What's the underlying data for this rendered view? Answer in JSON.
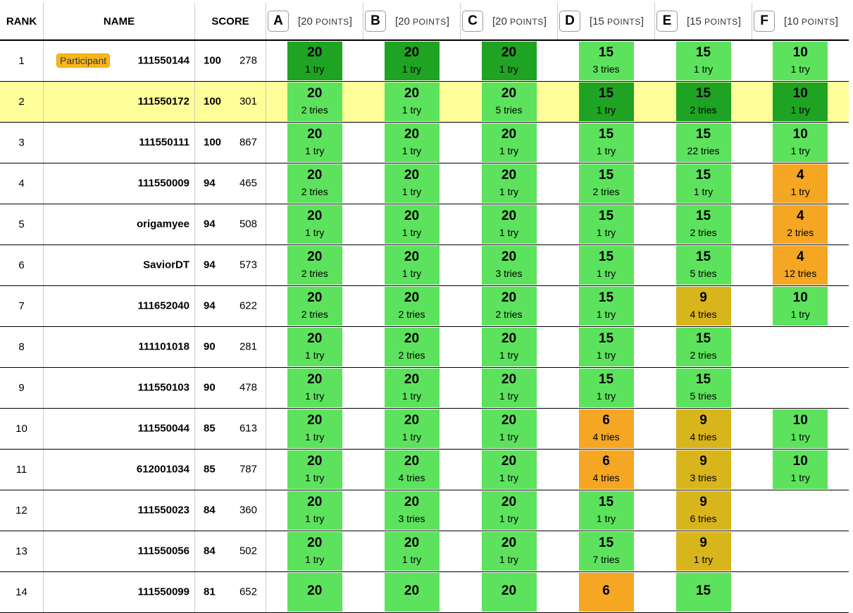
{
  "headers": {
    "rank": "RANK",
    "name": "NAME",
    "score": "SCORE"
  },
  "problems": [
    {
      "letter": "A",
      "points_label": "[20 ",
      "points_word": "POINTS",
      "close": "]"
    },
    {
      "letter": "B",
      "points_label": "[20 ",
      "points_word": "POINTS",
      "close": "]"
    },
    {
      "letter": "C",
      "points_label": "[20 ",
      "points_word": "POINTS",
      "close": "]"
    },
    {
      "letter": "D",
      "points_label": "[15 ",
      "points_word": "POINTS",
      "close": "]"
    },
    {
      "letter": "E",
      "points_label": "[15 ",
      "points_word": "POINTS",
      "close": "]"
    },
    {
      "letter": "F",
      "points_label": "[10 ",
      "points_word": "POINTS",
      "close": "]"
    }
  ],
  "colors": {
    "first_solve": "#1fa323",
    "full": "#5de25d",
    "partial_orange": "#f5a623",
    "partial_yellow": "#d9b51c",
    "highlight_row": "#ffff99"
  },
  "rows": [
    {
      "rank": "1",
      "badge": "Participant",
      "name": "111550144",
      "points": "100",
      "penalty": "278",
      "highlight": false,
      "cells": [
        {
          "p": "20",
          "t": "1 try",
          "c": "first"
        },
        {
          "p": "20",
          "t": "1 try",
          "c": "first"
        },
        {
          "p": "20",
          "t": "1 try",
          "c": "first"
        },
        {
          "p": "15",
          "t": "3 tries",
          "c": "full"
        },
        {
          "p": "15",
          "t": "1 try",
          "c": "full"
        },
        {
          "p": "10",
          "t": "1 try",
          "c": "full"
        }
      ]
    },
    {
      "rank": "2",
      "badge": "",
      "name": "111550172",
      "points": "100",
      "penalty": "301",
      "highlight": true,
      "cells": [
        {
          "p": "20",
          "t": "2 tries",
          "c": "full"
        },
        {
          "p": "20",
          "t": "1 try",
          "c": "full"
        },
        {
          "p": "20",
          "t": "5 tries",
          "c": "full"
        },
        {
          "p": "15",
          "t": "1 try",
          "c": "first"
        },
        {
          "p": "15",
          "t": "2 tries",
          "c": "first"
        },
        {
          "p": "10",
          "t": "1 try",
          "c": "first"
        }
      ]
    },
    {
      "rank": "3",
      "badge": "",
      "name": "111550111",
      "points": "100",
      "penalty": "867",
      "highlight": false,
      "cells": [
        {
          "p": "20",
          "t": "1 try",
          "c": "full"
        },
        {
          "p": "20",
          "t": "1 try",
          "c": "full"
        },
        {
          "p": "20",
          "t": "1 try",
          "c": "full"
        },
        {
          "p": "15",
          "t": "1 try",
          "c": "full"
        },
        {
          "p": "15",
          "t": "22 tries",
          "c": "full"
        },
        {
          "p": "10",
          "t": "1 try",
          "c": "full"
        }
      ]
    },
    {
      "rank": "4",
      "badge": "",
      "name": "111550009",
      "points": "94",
      "penalty": "465",
      "highlight": false,
      "cells": [
        {
          "p": "20",
          "t": "2 tries",
          "c": "full"
        },
        {
          "p": "20",
          "t": "1 try",
          "c": "full"
        },
        {
          "p": "20",
          "t": "1 try",
          "c": "full"
        },
        {
          "p": "15",
          "t": "2 tries",
          "c": "full"
        },
        {
          "p": "15",
          "t": "1 try",
          "c": "full"
        },
        {
          "p": "4",
          "t": "1 try",
          "c": "partial-o"
        }
      ]
    },
    {
      "rank": "5",
      "badge": "",
      "name": "origamyee",
      "points": "94",
      "penalty": "508",
      "highlight": false,
      "cells": [
        {
          "p": "20",
          "t": "1 try",
          "c": "full"
        },
        {
          "p": "20",
          "t": "1 try",
          "c": "full"
        },
        {
          "p": "20",
          "t": "1 try",
          "c": "full"
        },
        {
          "p": "15",
          "t": "1 try",
          "c": "full"
        },
        {
          "p": "15",
          "t": "2 tries",
          "c": "full"
        },
        {
          "p": "4",
          "t": "2 tries",
          "c": "partial-o"
        }
      ]
    },
    {
      "rank": "6",
      "badge": "",
      "name": "SaviorDT",
      "points": "94",
      "penalty": "573",
      "highlight": false,
      "cells": [
        {
          "p": "20",
          "t": "2 tries",
          "c": "full"
        },
        {
          "p": "20",
          "t": "1 try",
          "c": "full"
        },
        {
          "p": "20",
          "t": "3 tries",
          "c": "full"
        },
        {
          "p": "15",
          "t": "1 try",
          "c": "full"
        },
        {
          "p": "15",
          "t": "5 tries",
          "c": "full"
        },
        {
          "p": "4",
          "t": "12 tries",
          "c": "partial-o"
        }
      ]
    },
    {
      "rank": "7",
      "badge": "",
      "name": "111652040",
      "points": "94",
      "penalty": "622",
      "highlight": false,
      "cells": [
        {
          "p": "20",
          "t": "2 tries",
          "c": "full"
        },
        {
          "p": "20",
          "t": "2 tries",
          "c": "full"
        },
        {
          "p": "20",
          "t": "2 tries",
          "c": "full"
        },
        {
          "p": "15",
          "t": "1 try",
          "c": "full"
        },
        {
          "p": "9",
          "t": "4 tries",
          "c": "partial-y"
        },
        {
          "p": "10",
          "t": "1 try",
          "c": "full"
        }
      ]
    },
    {
      "rank": "8",
      "badge": "",
      "name": "111101018",
      "points": "90",
      "penalty": "281",
      "highlight": false,
      "cells": [
        {
          "p": "20",
          "t": "1 try",
          "c": "full"
        },
        {
          "p": "20",
          "t": "2 tries",
          "c": "full"
        },
        {
          "p": "20",
          "t": "1 try",
          "c": "full"
        },
        {
          "p": "15",
          "t": "1 try",
          "c": "full"
        },
        {
          "p": "15",
          "t": "2 tries",
          "c": "full"
        },
        null
      ]
    },
    {
      "rank": "9",
      "badge": "",
      "name": "111550103",
      "points": "90",
      "penalty": "478",
      "highlight": false,
      "cells": [
        {
          "p": "20",
          "t": "1 try",
          "c": "full"
        },
        {
          "p": "20",
          "t": "1 try",
          "c": "full"
        },
        {
          "p": "20",
          "t": "1 try",
          "c": "full"
        },
        {
          "p": "15",
          "t": "1 try",
          "c": "full"
        },
        {
          "p": "15",
          "t": "5 tries",
          "c": "full"
        },
        null
      ]
    },
    {
      "rank": "10",
      "badge": "",
      "name": "111550044",
      "points": "85",
      "penalty": "613",
      "highlight": false,
      "cells": [
        {
          "p": "20",
          "t": "1 try",
          "c": "full"
        },
        {
          "p": "20",
          "t": "1 try",
          "c": "full"
        },
        {
          "p": "20",
          "t": "1 try",
          "c": "full"
        },
        {
          "p": "6",
          "t": "4 tries",
          "c": "partial-o"
        },
        {
          "p": "9",
          "t": "4 tries",
          "c": "partial-y"
        },
        {
          "p": "10",
          "t": "1 try",
          "c": "full"
        }
      ]
    },
    {
      "rank": "11",
      "badge": "",
      "name": "612001034",
      "points": "85",
      "penalty": "787",
      "highlight": false,
      "cells": [
        {
          "p": "20",
          "t": "1 try",
          "c": "full"
        },
        {
          "p": "20",
          "t": "4 tries",
          "c": "full"
        },
        {
          "p": "20",
          "t": "1 try",
          "c": "full"
        },
        {
          "p": "6",
          "t": "4 tries",
          "c": "partial-o"
        },
        {
          "p": "9",
          "t": "3 tries",
          "c": "partial-y"
        },
        {
          "p": "10",
          "t": "1 try",
          "c": "full"
        }
      ]
    },
    {
      "rank": "12",
      "badge": "",
      "name": "111550023",
      "points": "84",
      "penalty": "360",
      "highlight": false,
      "cells": [
        {
          "p": "20",
          "t": "1 try",
          "c": "full"
        },
        {
          "p": "20",
          "t": "3 tries",
          "c": "full"
        },
        {
          "p": "20",
          "t": "1 try",
          "c": "full"
        },
        {
          "p": "15",
          "t": "1 try",
          "c": "full"
        },
        {
          "p": "9",
          "t": "6 tries",
          "c": "partial-y"
        },
        null
      ]
    },
    {
      "rank": "13",
      "badge": "",
      "name": "111550056",
      "points": "84",
      "penalty": "502",
      "highlight": false,
      "cells": [
        {
          "p": "20",
          "t": "1 try",
          "c": "full"
        },
        {
          "p": "20",
          "t": "1 try",
          "c": "full"
        },
        {
          "p": "20",
          "t": "1 try",
          "c": "full"
        },
        {
          "p": "15",
          "t": "7 tries",
          "c": "full"
        },
        {
          "p": "9",
          "t": "1 try",
          "c": "partial-y"
        },
        null
      ]
    },
    {
      "rank": "14",
      "badge": "",
      "name": "111550099",
      "points": "81",
      "penalty": "652",
      "highlight": false,
      "cells": [
        {
          "p": "20",
          "t": "",
          "c": "full"
        },
        {
          "p": "20",
          "t": "",
          "c": "full"
        },
        {
          "p": "20",
          "t": "",
          "c": "full"
        },
        {
          "p": "6",
          "t": "",
          "c": "partial-o"
        },
        {
          "p": "15",
          "t": "",
          "c": "full"
        },
        null
      ]
    }
  ]
}
